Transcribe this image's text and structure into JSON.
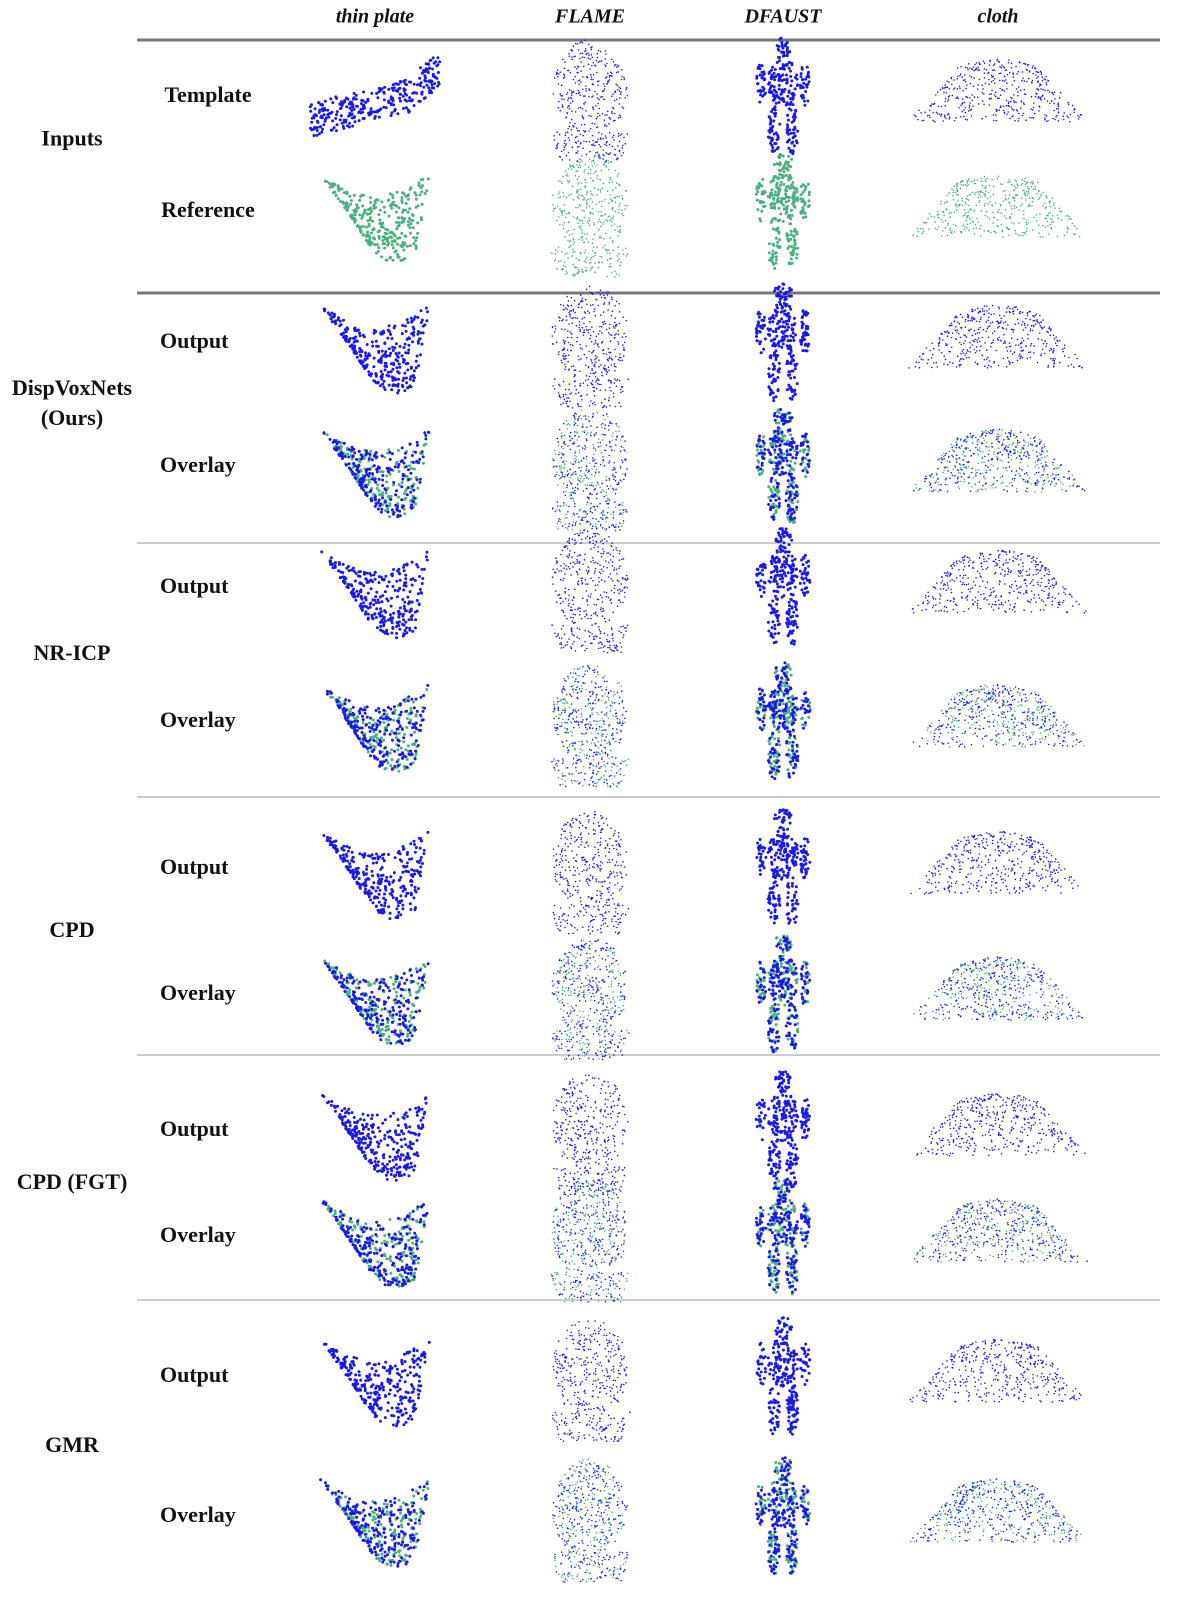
{
  "header": {
    "columns": [
      "thin plate",
      "FLAME",
      "DFAUST",
      "cloth"
    ]
  },
  "groups": [
    {
      "label": [
        "Inputs"
      ],
      "rows": [
        "Template",
        "Reference"
      ]
    },
    {
      "label": [
        "DispVoxNets",
        "(Ours)"
      ],
      "rows": [
        "Output",
        "Overlay"
      ]
    },
    {
      "label": [
        "NR-ICP"
      ],
      "rows": [
        "Output",
        "Overlay"
      ]
    },
    {
      "label": [
        "CPD"
      ],
      "rows": [
        "Output",
        "Overlay"
      ]
    },
    {
      "label": [
        "CPD (FGT)"
      ],
      "rows": [
        "Output",
        "Overlay"
      ]
    },
    {
      "label": [
        "GMR"
      ],
      "rows": [
        "Output",
        "Overlay"
      ]
    }
  ]
}
